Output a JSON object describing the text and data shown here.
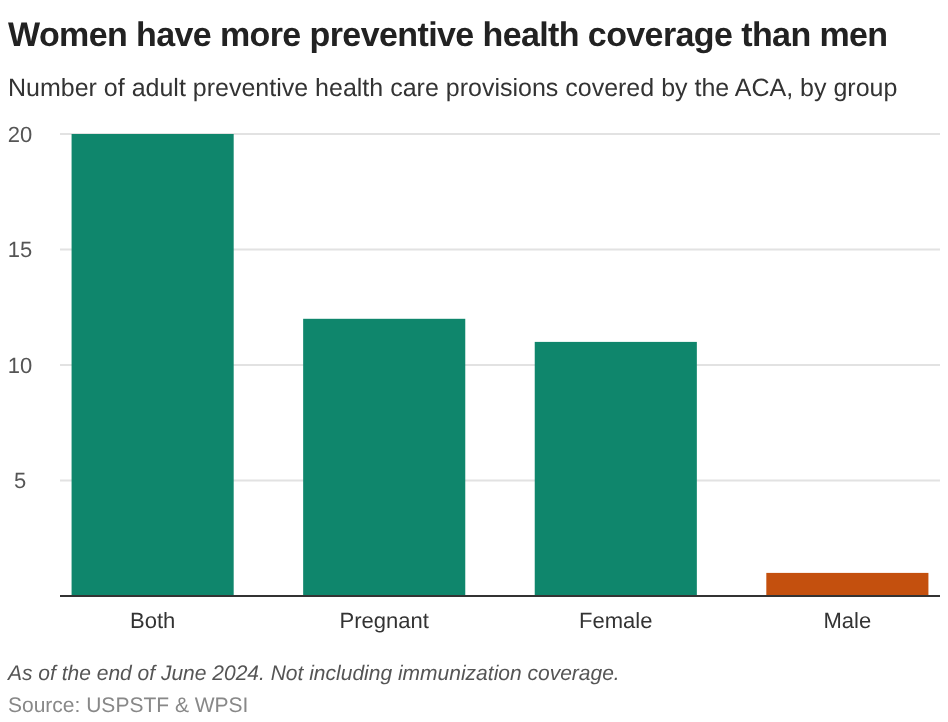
{
  "chart_data": {
    "type": "bar",
    "title": "Women have more preventive health coverage than men",
    "subtitle": "Number of adult preventive health care provisions covered by the ACA, by group",
    "categories": [
      "Both",
      "Pregnant",
      "Female",
      "Male"
    ],
    "values": [
      20,
      12,
      11,
      1
    ],
    "colors": [
      "#0f866c",
      "#0f866c",
      "#0f866c",
      "#c4500e"
    ],
    "ylim": [
      0,
      20
    ],
    "yticks": [
      5,
      10,
      15,
      20
    ],
    "grid": "y",
    "annotations": [
      "As of the end of June 2024. Not including immunization coverage.",
      "Source: USPSTF & WPSI"
    ]
  }
}
